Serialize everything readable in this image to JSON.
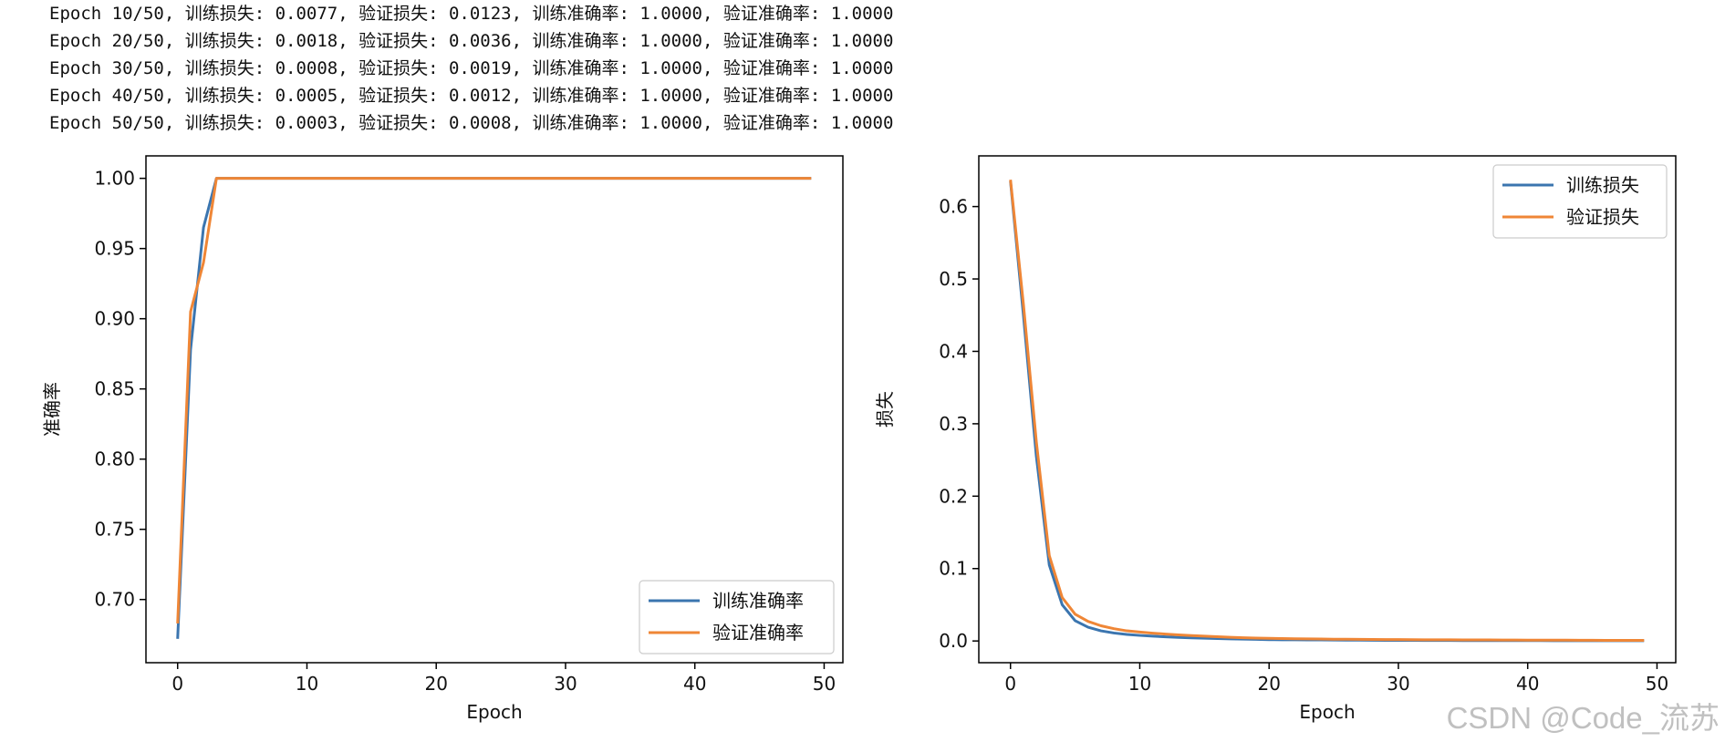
{
  "log_lines": [
    "Epoch 10/50, 训练损失: 0.0077, 验证损失: 0.0123, 训练准确率: 1.0000, 验证准确率: 1.0000",
    "Epoch 20/50, 训练损失: 0.0018, 验证损失: 0.0036, 训练准确率: 1.0000, 验证准确率: 1.0000",
    "Epoch 30/50, 训练损失: 0.0008, 验证损失: 0.0019, 训练准确率: 1.0000, 验证准确率: 1.0000",
    "Epoch 40/50, 训练损失: 0.0005, 验证损失: 0.0012, 训练准确率: 1.0000, 验证准确率: 1.0000",
    "Epoch 50/50, 训练损失: 0.0003, 验证损失: 0.0008, 训练准确率: 1.0000, 验证准确率: 1.0000"
  ],
  "watermark": "CSDN @Code_流苏",
  "colors": {
    "train": "#3b75af",
    "val": "#ef8636"
  },
  "chart_data": [
    {
      "type": "line",
      "xlabel": "Epoch",
      "ylabel": "准确率",
      "xlim": [
        -2.45,
        51.45
      ],
      "ylim": [
        0.655,
        1.016
      ],
      "xticks": [
        0,
        10,
        20,
        30,
        40,
        50
      ],
      "xtick_labels": [
        "0",
        "10",
        "20",
        "30",
        "40",
        "50"
      ],
      "yticks": [
        0.7,
        0.75,
        0.8,
        0.85,
        0.9,
        0.95,
        1.0
      ],
      "ytick_labels": [
        "0.70",
        "0.75",
        "0.80",
        "0.85",
        "0.90",
        "0.95",
        "1.00"
      ],
      "legend_position": "lower-right",
      "grid": false,
      "x": [
        0,
        1,
        2,
        3,
        4,
        5,
        6,
        7,
        8,
        9,
        10,
        11,
        12,
        13,
        14,
        15,
        16,
        17,
        18,
        19,
        20,
        21,
        22,
        23,
        24,
        25,
        26,
        27,
        28,
        29,
        30,
        31,
        32,
        33,
        34,
        35,
        36,
        37,
        38,
        39,
        40,
        41,
        42,
        43,
        44,
        45,
        46,
        47,
        48,
        49
      ],
      "series": [
        {
          "name": "训练准确率",
          "color_key": "train",
          "values": [
            0.672,
            0.878,
            0.965,
            1.0,
            1.0,
            1.0,
            1.0,
            1.0,
            1.0,
            1.0,
            1.0,
            1.0,
            1.0,
            1.0,
            1.0,
            1.0,
            1.0,
            1.0,
            1.0,
            1.0,
            1.0,
            1.0,
            1.0,
            1.0,
            1.0,
            1.0,
            1.0,
            1.0,
            1.0,
            1.0,
            1.0,
            1.0,
            1.0,
            1.0,
            1.0,
            1.0,
            1.0,
            1.0,
            1.0,
            1.0,
            1.0,
            1.0,
            1.0,
            1.0,
            1.0,
            1.0,
            1.0,
            1.0,
            1.0,
            1.0
          ]
        },
        {
          "name": "验证准确率",
          "color_key": "val",
          "values": [
            0.683,
            0.905,
            0.94,
            1.0,
            1.0,
            1.0,
            1.0,
            1.0,
            1.0,
            1.0,
            1.0,
            1.0,
            1.0,
            1.0,
            1.0,
            1.0,
            1.0,
            1.0,
            1.0,
            1.0,
            1.0,
            1.0,
            1.0,
            1.0,
            1.0,
            1.0,
            1.0,
            1.0,
            1.0,
            1.0,
            1.0,
            1.0,
            1.0,
            1.0,
            1.0,
            1.0,
            1.0,
            1.0,
            1.0,
            1.0,
            1.0,
            1.0,
            1.0,
            1.0,
            1.0,
            1.0,
            1.0,
            1.0,
            1.0,
            1.0
          ]
        }
      ]
    },
    {
      "type": "line",
      "xlabel": "Epoch",
      "ylabel": "损失",
      "xlim": [
        -2.45,
        51.45
      ],
      "ylim": [
        -0.03,
        0.67
      ],
      "xticks": [
        0,
        10,
        20,
        30,
        40,
        50
      ],
      "xtick_labels": [
        "0",
        "10",
        "20",
        "30",
        "40",
        "50"
      ],
      "yticks": [
        0.0,
        0.1,
        0.2,
        0.3,
        0.4,
        0.5,
        0.6
      ],
      "ytick_labels": [
        "0.0",
        "0.1",
        "0.2",
        "0.3",
        "0.4",
        "0.5",
        "0.6"
      ],
      "legend_position": "upper-right",
      "grid": false,
      "x": [
        0,
        1,
        2,
        3,
        4,
        5,
        6,
        7,
        8,
        9,
        10,
        11,
        12,
        13,
        14,
        15,
        16,
        17,
        18,
        19,
        20,
        21,
        22,
        23,
        24,
        25,
        26,
        27,
        28,
        29,
        30,
        31,
        32,
        33,
        34,
        35,
        36,
        37,
        38,
        39,
        40,
        41,
        42,
        43,
        44,
        45,
        46,
        47,
        48,
        49
      ],
      "series": [
        {
          "name": "训练损失",
          "color_key": "train",
          "values": [
            0.635,
            0.45,
            0.255,
            0.105,
            0.05,
            0.028,
            0.019,
            0.014,
            0.011,
            0.009,
            0.0077,
            0.0066,
            0.0057,
            0.005,
            0.0043,
            0.0038,
            0.0033,
            0.0029,
            0.0026,
            0.0022,
            0.0018,
            0.0017,
            0.0016,
            0.0015,
            0.0014,
            0.0013,
            0.0012,
            0.0011,
            0.001,
            0.0009,
            0.0008,
            0.0008,
            0.0007,
            0.0007,
            0.0007,
            0.0006,
            0.0006,
            0.0006,
            0.0005,
            0.0005,
            0.0005,
            0.0005,
            0.0004,
            0.0004,
            0.0004,
            0.0004,
            0.0004,
            0.0003,
            0.0003,
            0.0003
          ]
        },
        {
          "name": "验证损失",
          "color_key": "val",
          "values": [
            0.637,
            0.465,
            0.275,
            0.118,
            0.06,
            0.037,
            0.027,
            0.021,
            0.017,
            0.014,
            0.0123,
            0.0108,
            0.0095,
            0.0084,
            0.0075,
            0.0066,
            0.0058,
            0.0051,
            0.0045,
            0.004,
            0.0036,
            0.0033,
            0.0031,
            0.0029,
            0.0027,
            0.0025,
            0.0024,
            0.0022,
            0.0021,
            0.002,
            0.0019,
            0.0018,
            0.0017,
            0.0016,
            0.0016,
            0.0015,
            0.0014,
            0.0014,
            0.0013,
            0.0013,
            0.0012,
            0.0012,
            0.0011,
            0.0011,
            0.001,
            0.001,
            0.0009,
            0.0009,
            0.0008,
            0.0008
          ]
        }
      ]
    }
  ]
}
